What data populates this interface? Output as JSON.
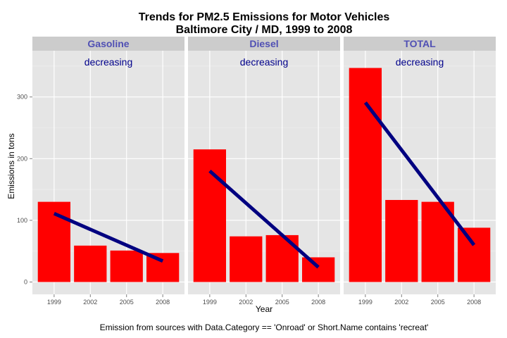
{
  "chart_data": {
    "type": "bar",
    "title_lines": [
      "Trends for PM2.5 Emissions for Motor Vehicles",
      "Baltimore City / MD, 1999 to 2008"
    ],
    "xlabel": "Year",
    "ylabel": "Emissions in tons",
    "caption": "Emission from sources with Data.Category == 'Onroad' or Short.Name contains 'recreat'",
    "categories": [
      "1999",
      "2002",
      "2005",
      "2008"
    ],
    "ylim": [
      -20,
      375
    ],
    "yticks": [
      0,
      100,
      200,
      300
    ],
    "grid": true,
    "colors": {
      "bar": "#ff0000",
      "trend": "#000080",
      "panel_bg": "#e5e5e5",
      "strip_bg": "#cccccc",
      "strip_text": "#5050b4",
      "trend_label": "#00008b",
      "grid_major": "#ffffff",
      "grid_minor": "#f2f2f2"
    },
    "panels": [
      {
        "name": "Gasoline",
        "trend_label": "decreasing",
        "values": [
          130,
          59,
          51,
          47
        ],
        "trend": [
          111,
          34
        ]
      },
      {
        "name": "Diesel",
        "trend_label": "decreasing",
        "values": [
          215,
          74,
          76,
          40
        ],
        "trend": [
          180,
          24
        ]
      },
      {
        "name": "TOTAL",
        "trend_label": "decreasing",
        "values": [
          347,
          133,
          130,
          88
        ],
        "trend": [
          291,
          60
        ]
      }
    ]
  }
}
